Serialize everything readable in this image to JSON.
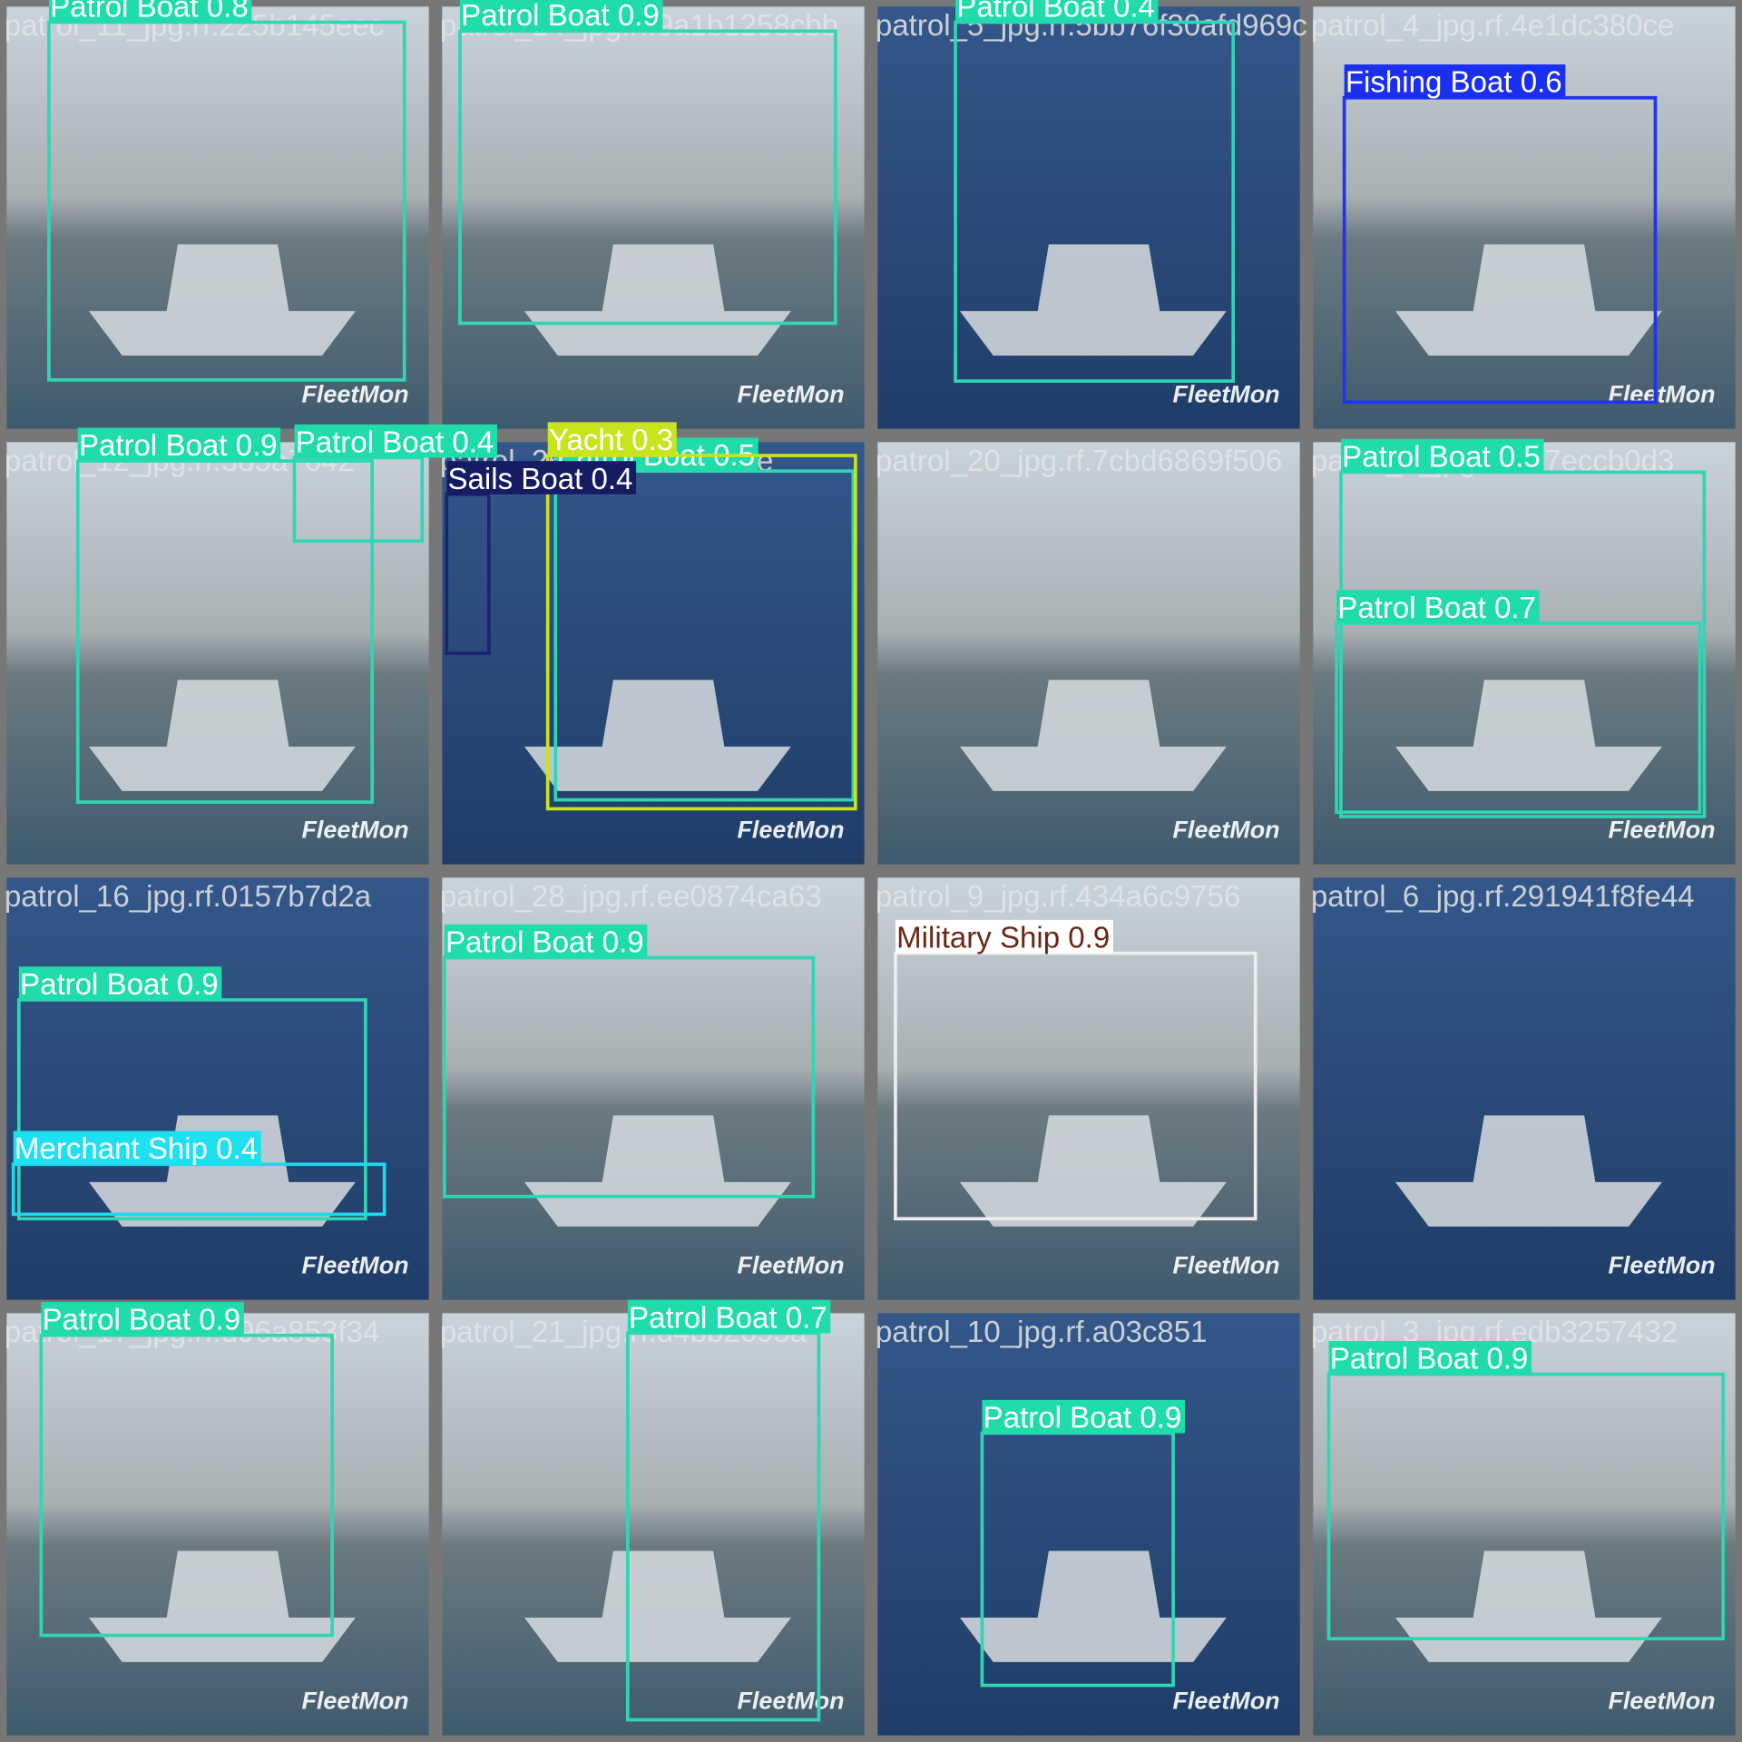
{
  "watermark": "FleetMon",
  "tiles": [
    {
      "filename": "patrol_11_jpg.rf.225b145eec",
      "detections": [
        {
          "label": "Patrol Boat 0.8"
        }
      ]
    },
    {
      "filename": "patrol_24_jpg.rf.9a1b1258cbb",
      "detections": [
        {
          "label": "Patrol Boat 0.9"
        }
      ]
    },
    {
      "filename": "patrol_5_jpg.rf.5bb76f30afd969c",
      "detections": [
        {
          "label": "Patrol Boat 0.4"
        }
      ]
    },
    {
      "filename": "patrol_4_jpg.rf.4e1dc380ce",
      "detections": [
        {
          "label": "Fishing Boat 0.6"
        }
      ]
    },
    {
      "filename": "patrol_12_jpg.rf.385a7642",
      "detections": [
        {
          "label": "Patrol Boat 0.9"
        },
        {
          "label": "Patrol Boat 0.4"
        }
      ]
    },
    {
      "filename": "patrol_26_jpg.rf.ea1a5ae",
      "detections": [
        {
          "label": "Patrol Boat 0.5"
        },
        {
          "label": "Yacht 0.3"
        },
        {
          "label": "Sails Boat 0.4"
        }
      ]
    },
    {
      "filename": "patrol_20_jpg.rf.7cbd6869f506",
      "detections": []
    },
    {
      "filename": "patrol_2_jpg.rf.857eccb0d3",
      "detections": [
        {
          "label": "Patrol Boat 0.5"
        },
        {
          "label": "Patrol Boat 0.7"
        }
      ]
    },
    {
      "filename": "patrol_16_jpg.rf.0157b7d2a",
      "detections": [
        {
          "label": "Patrol Boat 0.9"
        },
        {
          "label": "Merchant Ship 0.4"
        }
      ]
    },
    {
      "filename": "patrol_28_jpg.rf.ee0874ca63",
      "detections": [
        {
          "label": "Patrol Boat 0.9"
        }
      ]
    },
    {
      "filename": "patrol_9_jpg.rf.434a6c9756",
      "detections": [
        {
          "label": "Military Ship 0.9"
        }
      ]
    },
    {
      "filename": "patrol_6_jpg.rf.291941f8fe44",
      "detections": []
    },
    {
      "filename": "patrol_17_jpg.rf.d96a853f34",
      "detections": [
        {
          "label": "Patrol Boat 0.9"
        }
      ]
    },
    {
      "filename": "patrol_21_jpg.rf.d4bb2695a",
      "detections": [
        {
          "label": "Patrol Boat 0.7"
        }
      ]
    },
    {
      "filename": "patrol_10_jpg.rf.a03c851",
      "detections": [
        {
          "label": "Patrol Boat 0.9"
        }
      ]
    },
    {
      "filename": "patrol_3_jpg.rf.edb3257432",
      "detections": [
        {
          "label": "Patrol Boat 0.9"
        }
      ]
    }
  ]
}
